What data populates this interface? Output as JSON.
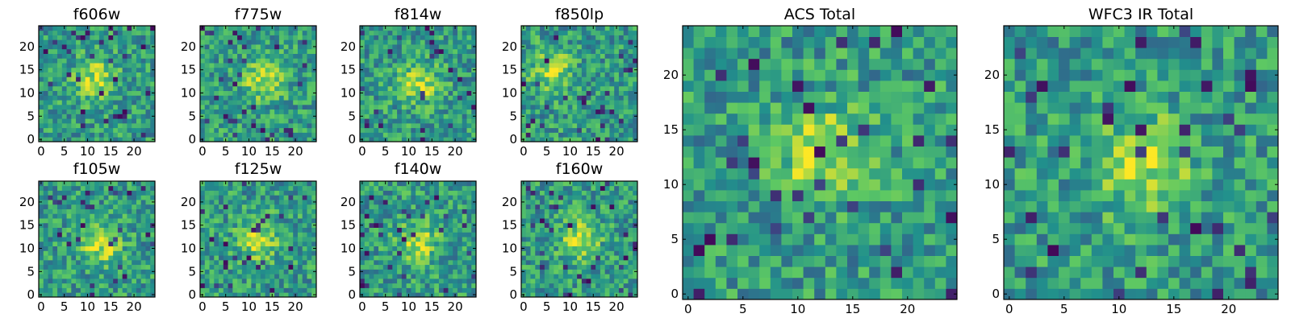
{
  "chart_data": [
    {
      "type": "heatmap",
      "title": "f606w",
      "xlim": [
        0,
        24
      ],
      "ylim": [
        0,
        24
      ],
      "xticks": [
        0,
        5,
        10,
        15,
        20
      ],
      "yticks": [
        0,
        5,
        10,
        15,
        20
      ],
      "peak": [
        12,
        13
      ],
      "colormap": "viridis"
    },
    {
      "type": "heatmap",
      "title": "f775w",
      "xlim": [
        0,
        24
      ],
      "ylim": [
        0,
        24
      ],
      "xticks": [
        0,
        5,
        10,
        15,
        20
      ],
      "yticks": [
        0,
        5,
        10,
        15,
        20
      ],
      "peak": [
        13,
        13
      ],
      "colormap": "viridis"
    },
    {
      "type": "heatmap",
      "title": "f814w",
      "xlim": [
        0,
        24
      ],
      "ylim": [
        0,
        24
      ],
      "xticks": [
        0,
        5,
        10,
        15,
        20
      ],
      "yticks": [
        0,
        5,
        10,
        15,
        20
      ],
      "peak": [
        12,
        12
      ],
      "colormap": "viridis"
    },
    {
      "type": "heatmap",
      "title": "f850lp",
      "xlim": [
        0,
        24
      ],
      "ylim": [
        0,
        24
      ],
      "xticks": [
        0,
        5,
        10,
        15,
        20
      ],
      "yticks": [
        0,
        5,
        10,
        15,
        20
      ],
      "peak": [
        6,
        15
      ],
      "colormap": "viridis"
    },
    {
      "type": "heatmap",
      "title": "ACS Total",
      "xlim": [
        0,
        24
      ],
      "ylim": [
        0,
        24
      ],
      "xticks": [
        0,
        5,
        10,
        15,
        20
      ],
      "yticks": [
        0,
        5,
        10,
        15,
        20
      ],
      "peak": [
        12,
        13
      ],
      "colormap": "viridis"
    },
    {
      "type": "heatmap",
      "title": "f105w",
      "xlim": [
        0,
        24
      ],
      "ylim": [
        0,
        24
      ],
      "xticks": [
        0,
        5,
        10,
        15,
        20
      ],
      "yticks": [
        0,
        5,
        10,
        15,
        20
      ],
      "peak": [
        13,
        11
      ],
      "colormap": "viridis"
    },
    {
      "type": "heatmap",
      "title": "f125w",
      "xlim": [
        0,
        24
      ],
      "ylim": [
        0,
        24
      ],
      "xticks": [
        0,
        5,
        10,
        15,
        20
      ],
      "yticks": [
        0,
        5,
        10,
        15,
        20
      ],
      "peak": [
        12,
        12
      ],
      "colormap": "viridis"
    },
    {
      "type": "heatmap",
      "title": "f140w",
      "xlim": [
        0,
        24
      ],
      "ylim": [
        0,
        24
      ],
      "xticks": [
        0,
        5,
        10,
        15,
        20
      ],
      "yticks": [
        0,
        5,
        10,
        15,
        20
      ],
      "peak": [
        12,
        11
      ],
      "colormap": "viridis"
    },
    {
      "type": "heatmap",
      "title": "f160w",
      "xlim": [
        0,
        24
      ],
      "ylim": [
        0,
        24
      ],
      "xticks": [
        0,
        5,
        10,
        15,
        20
      ],
      "yticks": [
        0,
        5,
        10,
        15,
        20
      ],
      "peak": [
        12,
        12
      ],
      "colormap": "viridis"
    },
    {
      "type": "heatmap",
      "title": "WFC3 IR Total",
      "xlim": [
        0,
        24
      ],
      "ylim": [
        0,
        24
      ],
      "xticks": [
        0,
        5,
        10,
        15,
        20
      ],
      "yticks": [
        0,
        5,
        10,
        15,
        20
      ],
      "peak": [
        12,
        12
      ],
      "colormap": "viridis"
    }
  ],
  "colors": {
    "background": "#ffffff",
    "axis": "#000000",
    "colormap_stops": [
      "#440154",
      "#3b528b",
      "#21908c",
      "#5dc863",
      "#fde725"
    ]
  }
}
